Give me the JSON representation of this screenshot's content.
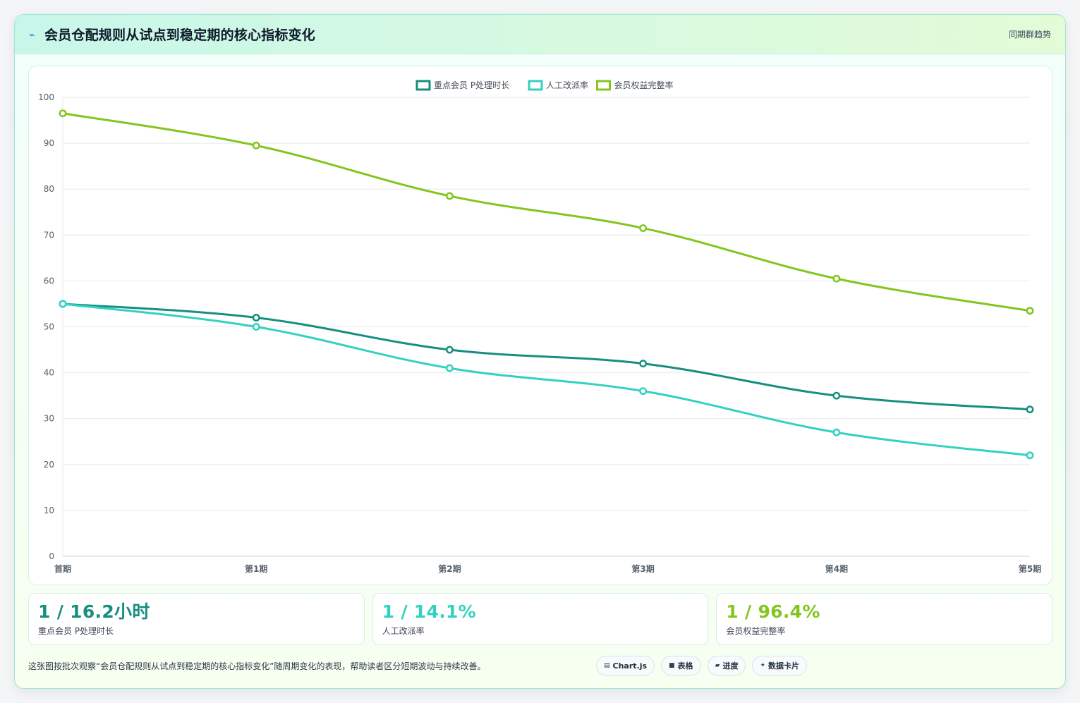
{
  "header": {
    "icon": "bolt-icon",
    "title": "会员仓配规则从试点到稳定期的核心指标变化",
    "badge": "同期群趋势"
  },
  "chart_data": {
    "type": "line",
    "categories": [
      "首期",
      "第1期",
      "第2期",
      "第3期",
      "第4期",
      "第5期"
    ],
    "series": [
      {
        "name": "重点会员 P处理时长",
        "color": "#168f80",
        "values": [
          55,
          52,
          45,
          42,
          35,
          32
        ]
      },
      {
        "name": "人工改派率",
        "color": "#33d1c0",
        "values": [
          55,
          50,
          41,
          36,
          27,
          22
        ]
      },
      {
        "name": "会员权益完整率",
        "color": "#84c520",
        "values": [
          96.5,
          89.5,
          78.5,
          71.5,
          60.5,
          53.5
        ]
      }
    ],
    "ylim": [
      0,
      100
    ],
    "yticks": [
      0,
      10,
      20,
      30,
      40,
      50,
      60,
      70,
      80,
      90,
      100
    ],
    "grid": true,
    "legend": "top-center"
  },
  "kpis": [
    {
      "value": "1 / 16.2小时",
      "label": "重点会员 P处理时长",
      "color": "#168f80"
    },
    {
      "value": "1 / 14.1%",
      "label": "人工改派率",
      "color": "#33d1c0"
    },
    {
      "value": "1 / 96.4%",
      "label": "会员权益完整率",
      "color": "#84c520"
    }
  ],
  "footer": {
    "note": "这张图按批次观察“会员仓配规则从试点到稳定期的核心指标变化”随周期变化的表现，帮助读者区分短期波动与持续改善。",
    "tags": [
      {
        "icon": "chart-icon",
        "label": "Chart.js"
      },
      {
        "icon": "table-icon",
        "label": "表格"
      },
      {
        "icon": "progress-icon",
        "label": "进度"
      },
      {
        "icon": "sparkle-icon",
        "label": "数据卡片"
      }
    ]
  }
}
